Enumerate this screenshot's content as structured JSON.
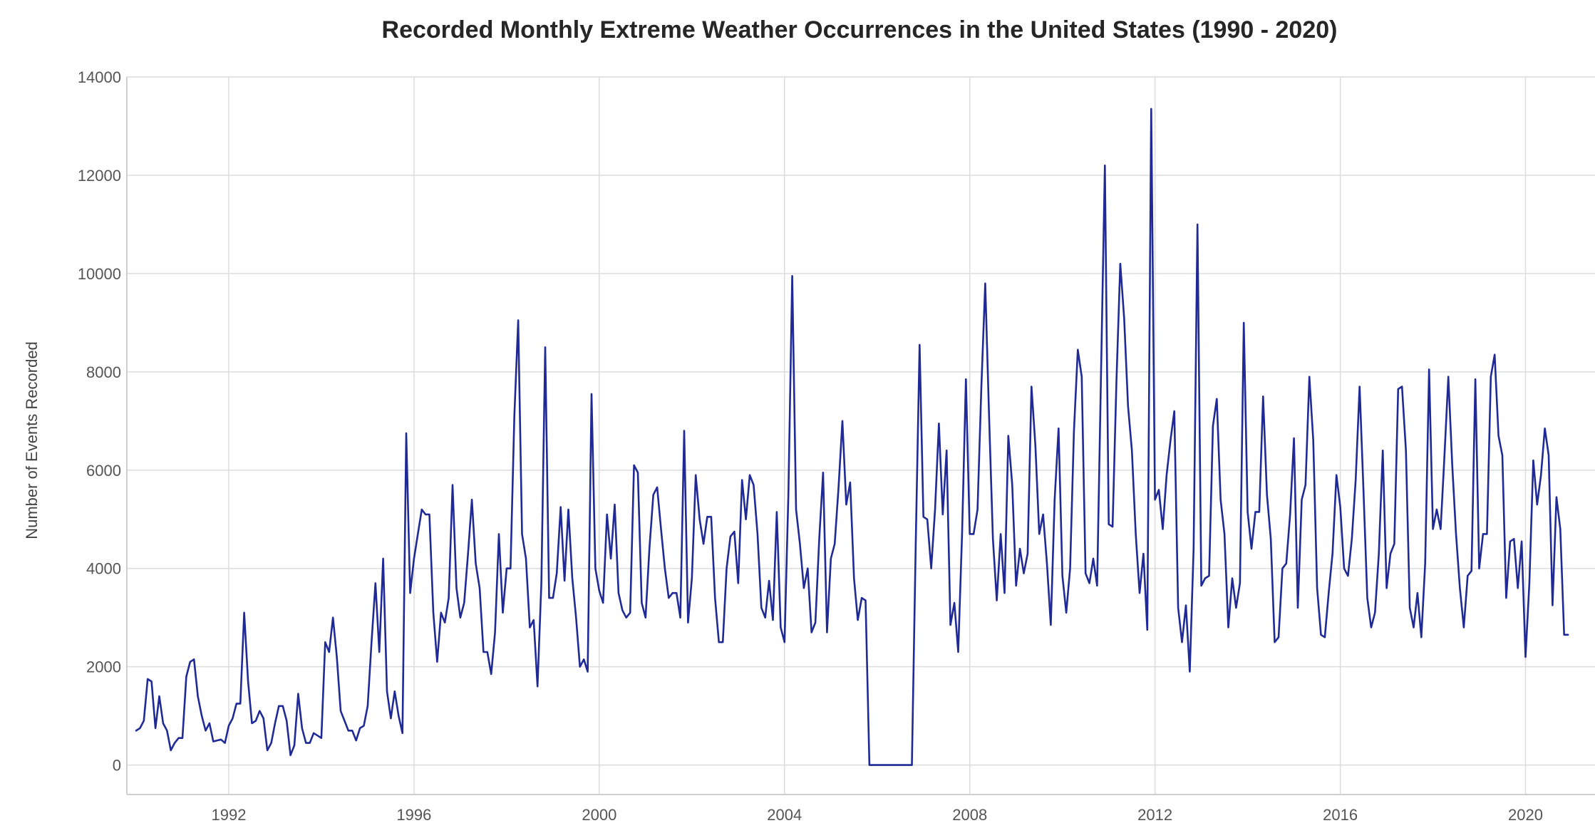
{
  "chart_data": {
    "type": "line",
    "title": "Recorded Monthly Extreme Weather Occurrences in the United States (1990 - 2020)",
    "xlabel": "",
    "ylabel": "Number of Events Recorded",
    "xlim": [
      1989.8,
      2021.5
    ],
    "ylim": [
      -600,
      14000
    ],
    "xticks": [
      1992,
      1996,
      2000,
      2004,
      2008,
      2012,
      2016,
      2020
    ],
    "xtick_labels": [
      "1992",
      "1996",
      "2000",
      "2004",
      "2008",
      "2012",
      "2016",
      "2020"
    ],
    "yticks": [
      0,
      2000,
      4000,
      6000,
      8000,
      10000,
      12000,
      14000
    ],
    "ytick_labels": [
      "0",
      "2000",
      "4000",
      "6000",
      "8000",
      "10000",
      "12000",
      "14000"
    ],
    "grid": true,
    "legend": "none",
    "color": "#1f2a96",
    "series": [
      {
        "x": [
          1990.0,
          1990.083,
          1990.167,
          1990.25,
          1990.333,
          1990.417,
          1990.5,
          1990.583,
          1990.667,
          1990.75,
          1990.833,
          1990.917,
          1991.0,
          1991.083,
          1991.167,
          1991.25,
          1991.333,
          1991.417,
          1991.5,
          1991.583,
          1991.667,
          1991.75,
          1991.833,
          1991.917,
          1992.0,
          1992.083,
          1992.167,
          1992.25,
          1992.333,
          1992.417,
          1992.5,
          1992.583,
          1992.667,
          1992.75,
          1992.833,
          1992.917,
          1993.0,
          1993.083,
          1993.167,
          1993.25,
          1993.333,
          1993.417,
          1993.5,
          1993.583,
          1993.667,
          1993.75,
          1993.833,
          1993.917,
          1994.0,
          1994.083,
          1994.167,
          1994.25,
          1994.333,
          1994.417,
          1994.5,
          1994.583,
          1994.667,
          1994.75,
          1994.833,
          1994.917,
          1995.0,
          1995.083,
          1995.167,
          1995.25,
          1995.333,
          1995.417,
          1995.5,
          1995.583,
          1995.667,
          1995.75,
          1995.833,
          1995.917,
          1996.0,
          1996.083,
          1996.167,
          1996.25,
          1996.333,
          1996.417,
          1996.5,
          1996.583,
          1996.667,
          1996.75,
          1996.833,
          1996.917,
          1997.0,
          1997.083,
          1997.167,
          1997.25,
          1997.333,
          1997.417,
          1997.5,
          1997.583,
          1997.667,
          1997.75,
          1997.833,
          1997.917,
          1998.0,
          1998.083,
          1998.167,
          1998.25,
          1998.333,
          1998.417,
          1998.5,
          1998.583,
          1998.667,
          1998.75,
          1998.833,
          1998.917,
          1999.0,
          1999.083,
          1999.167,
          1999.25,
          1999.333,
          1999.417,
          1999.5,
          1999.583,
          1999.667,
          1999.75,
          1999.833,
          1999.917,
          2000.0,
          2000.083,
          2000.167,
          2000.25,
          2000.333,
          2000.417,
          2000.5,
          2000.583,
          2000.667,
          2000.75,
          2000.833,
          2000.917,
          2001.0,
          2001.083,
          2001.167,
          2001.25,
          2001.333,
          2001.417,
          2001.5,
          2001.583,
          2001.667,
          2001.75,
          2001.833,
          2001.917,
          2002.0,
          2002.083,
          2002.167,
          2002.25,
          2002.333,
          2002.417,
          2002.5,
          2002.583,
          2002.667,
          2002.75,
          2002.833,
          2002.917,
          2003.0,
          2003.083,
          2003.167,
          2003.25,
          2003.333,
          2003.417,
          2003.5,
          2003.583,
          2003.667,
          2003.75,
          2003.833,
          2003.917,
          2004.0,
          2004.083,
          2004.167,
          2004.25,
          2004.333,
          2004.417,
          2004.5,
          2004.583,
          2004.667,
          2004.75,
          2004.833,
          2004.917,
          2005.0,
          2005.083,
          2005.167,
          2005.25,
          2005.333,
          2005.417,
          2005.5,
          2005.583,
          2005.667,
          2005.75,
          2005.833,
          2005.917,
          2006.0,
          2006.083,
          2006.167,
          2006.25,
          2006.333,
          2006.417,
          2006.5,
          2006.583,
          2006.667,
          2006.75,
          2006.833,
          2006.917,
          2007.0,
          2007.083,
          2007.167,
          2007.25,
          2007.333,
          2007.417,
          2007.5,
          2007.583,
          2007.667,
          2007.75,
          2007.833,
          2007.917,
          2008.0,
          2008.083,
          2008.167,
          2008.25,
          2008.333,
          2008.417,
          2008.5,
          2008.583,
          2008.667,
          2008.75,
          2008.833,
          2008.917,
          2009.0,
          2009.083,
          2009.167,
          2009.25,
          2009.333,
          2009.417,
          2009.5,
          2009.583,
          2009.667,
          2009.75,
          2009.833,
          2009.917,
          2010.0,
          2010.083,
          2010.167,
          2010.25,
          2010.333,
          2010.417,
          2010.5,
          2010.583,
          2010.667,
          2010.75,
          2010.833,
          2010.917,
          2011.0,
          2011.083,
          2011.167,
          2011.25,
          2011.333,
          2011.417,
          2011.5,
          2011.583,
          2011.667,
          2011.75,
          2011.833,
          2011.917,
          2012.0,
          2012.083,
          2012.167,
          2012.25,
          2012.333,
          2012.417,
          2012.5,
          2012.583,
          2012.667,
          2012.75,
          2012.833,
          2012.917,
          2013.0,
          2013.083,
          2013.167,
          2013.25,
          2013.333,
          2013.417,
          2013.5,
          2013.583,
          2013.667,
          2013.75,
          2013.833,
          2013.917,
          2014.0,
          2014.083,
          2014.167,
          2014.25,
          2014.333,
          2014.417,
          2014.5,
          2014.583,
          2014.667,
          2014.75,
          2014.833,
          2014.917,
          2015.0,
          2015.083,
          2015.167,
          2015.25,
          2015.333,
          2015.417,
          2015.5,
          2015.583,
          2015.667,
          2015.75,
          2015.833,
          2015.917,
          2016.0,
          2016.083,
          2016.167,
          2016.25,
          2016.333,
          2016.417,
          2016.5,
          2016.583,
          2016.667,
          2016.75,
          2016.833,
          2016.917,
          2017.0,
          2017.083,
          2017.167,
          2017.25,
          2017.333,
          2017.417,
          2017.5,
          2017.583,
          2017.667,
          2017.75,
          2017.833,
          2017.917,
          2018.0,
          2018.083,
          2018.167,
          2018.25,
          2018.333,
          2018.417,
          2018.5,
          2018.583,
          2018.667,
          2018.75,
          2018.833,
          2018.917,
          2019.0,
          2019.083,
          2019.167,
          2019.25,
          2019.333,
          2019.417,
          2019.5,
          2019.583,
          2019.667,
          2019.75,
          2019.833,
          2019.917,
          2020.0,
          2020.083,
          2020.167,
          2020.25,
          2020.333,
          2020.417,
          2020.5,
          2020.583,
          2020.667,
          2020.75,
          2020.833,
          2020.917
        ],
        "y": [
          700,
          750,
          900,
          1750,
          1700,
          750,
          1400,
          850,
          700,
          300,
          450,
          550,
          550,
          1800,
          2100,
          2150,
          1400,
          1000,
          700,
          850,
          480,
          500,
          520,
          450,
          800,
          950,
          1250,
          1250,
          3100,
          1700,
          850,
          900,
          1100,
          950,
          300,
          450,
          850,
          1200,
          1200,
          900,
          200,
          400,
          1450,
          750,
          450,
          450,
          650,
          600,
          550,
          2500,
          2300,
          3000,
          2200,
          1100,
          900,
          700,
          700,
          500,
          750,
          800,
          1200,
          2500,
          3700,
          2300,
          4200,
          1500,
          950,
          1500,
          1000,
          650,
          6750,
          3500,
          4200,
          4700,
          5200,
          5100,
          5100,
          3100,
          2100,
          3100,
          2900,
          3400,
          5700,
          3600,
          3000,
          3300,
          4300,
          5400,
          4100,
          3600,
          2300,
          2300,
          1850,
          2700,
          4700,
          3100,
          4000,
          4000,
          7100,
          9050,
          4700,
          4200,
          2800,
          2950,
          1600,
          3700,
          8500,
          3400,
          3400,
          3900,
          5250,
          3750,
          5200,
          3800,
          3000,
          2000,
          2150,
          1900,
          7550,
          4000,
          3550,
          3300,
          5100,
          4200,
          5300,
          3500,
          3150,
          3000,
          3100,
          6100,
          5950,
          3300,
          3000,
          4400,
          5500,
          5650,
          4800,
          4000,
          3400,
          3500,
          3500,
          3000,
          6800,
          2900,
          3800,
          5900,
          5000,
          4500,
          5050,
          5050,
          3400,
          2500,
          2500,
          4000,
          4650,
          4750,
          3700,
          5800,
          5000,
          5900,
          5700,
          4700,
          3200,
          3000,
          3750,
          2950,
          5150,
          2800,
          2500,
          5500,
          9950,
          5200,
          4500,
          3600,
          4000,
          2700,
          2900,
          4600,
          5950,
          2700,
          4200,
          4500,
          5650,
          7000,
          5300,
          5750,
          3800,
          2950,
          3400,
          3350,
          0,
          0,
          0,
          0,
          0,
          0,
          0,
          0,
          0,
          0,
          0,
          0,
          4500,
          8550,
          5050,
          5000,
          4000,
          5200,
          6950,
          5100,
          6400,
          2850,
          3300,
          2300,
          4700,
          7850,
          4700,
          4700,
          5200,
          7700,
          9800,
          7100,
          4600,
          3350,
          4700,
          3500,
          6700,
          5700,
          3650,
          4400,
          3900,
          4300,
          7700,
          6500,
          4700,
          5100,
          4100,
          2850,
          5400,
          6850,
          3850,
          3100,
          4000,
          6800,
          8450,
          7900,
          3900,
          3700,
          4200,
          3650,
          7900,
          12200,
          4900,
          4850,
          7800,
          10200,
          9100,
          7300,
          6400,
          4700,
          3500,
          4300,
          2750,
          13350,
          5400,
          5600,
          4800,
          5900,
          6600,
          7200,
          3200,
          2500,
          3250,
          1900,
          4400,
          11000,
          3650,
          3800,
          3850,
          6900,
          7450,
          5400,
          4700,
          2800,
          3800,
          3200,
          3700,
          9000,
          5150,
          4400,
          5150,
          5150,
          7500,
          5500,
          4600,
          2500,
          2600,
          4000,
          4100,
          5100,
          6650,
          3200,
          5400,
          5700,
          7900,
          6600,
          3600,
          2650,
          2600,
          3500,
          4300,
          5900,
          5250,
          4000,
          3850,
          4600,
          5800,
          7700,
          5600,
          3400,
          2800,
          3100,
          4300,
          6400,
          3600,
          4300,
          4500,
          7650,
          7700,
          6400,
          3200,
          2800,
          3500,
          2600,
          4100,
          8050,
          4800,
          5200,
          4800,
          6300,
          7900,
          6100,
          4700,
          3600,
          2800,
          3850,
          3950,
          7850,
          4000,
          4700,
          4700,
          7900,
          8350,
          6700,
          6300,
          3400,
          4550,
          4600,
          3600,
          4550,
          2200,
          3700,
          6200,
          5300,
          5900,
          6850,
          6300,
          3250,
          5450,
          4800,
          2650,
          2650
        ]
      }
    ]
  }
}
